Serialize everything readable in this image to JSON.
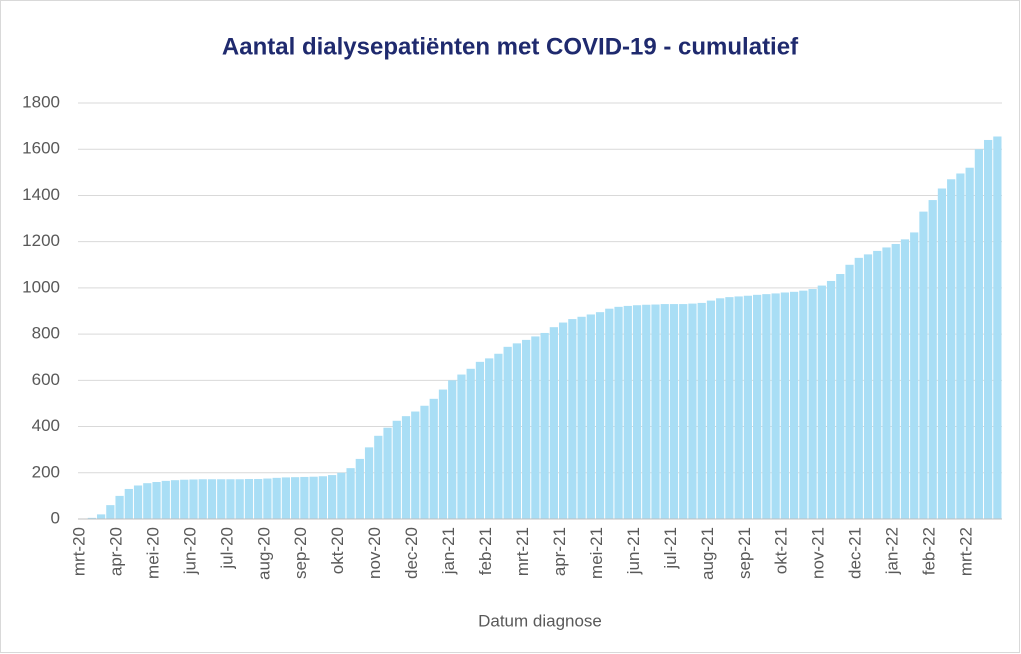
{
  "chart_data": {
    "type": "bar",
    "title": "Aantal dialysepatiënten met COVID-19 - cumulatief",
    "x_label": "Datum diagnose",
    "categories": [
      "mrt-20",
      null,
      null,
      null,
      "apr-20",
      null,
      null,
      null,
      "mei-20",
      null,
      null,
      null,
      "jun-20",
      null,
      null,
      null,
      "jul-20",
      null,
      null,
      null,
      "aug-20",
      null,
      null,
      null,
      "sep-20",
      null,
      null,
      null,
      "okt-20",
      null,
      null,
      null,
      "nov-20",
      null,
      null,
      null,
      "dec-20",
      null,
      null,
      null,
      "jan-21",
      null,
      null,
      null,
      "feb-21",
      null,
      null,
      null,
      "mrt-21",
      null,
      null,
      null,
      "apr-21",
      null,
      null,
      null,
      "mei-21",
      null,
      null,
      null,
      "jun-21",
      null,
      null,
      null,
      "jul-21",
      null,
      null,
      null,
      "aug-21",
      null,
      null,
      null,
      "sep-21",
      null,
      null,
      null,
      "okt-21",
      null,
      null,
      null,
      "nov-21",
      null,
      null,
      null,
      "dec-21",
      null,
      null,
      null,
      "jan-22",
      null,
      null,
      null,
      "feb-22",
      null,
      null,
      null,
      "mrt-22",
      null,
      null,
      null
    ],
    "values": [
      2,
      5,
      20,
      60,
      100,
      130,
      145,
      155,
      160,
      165,
      168,
      170,
      171,
      172,
      172,
      172,
      172,
      172,
      173,
      173,
      175,
      178,
      180,
      181,
      182,
      183,
      185,
      190,
      200,
      220,
      260,
      310,
      360,
      395,
      425,
      445,
      465,
      490,
      520,
      560,
      600,
      625,
      650,
      680,
      695,
      715,
      745,
      760,
      775,
      790,
      805,
      830,
      850,
      865,
      875,
      885,
      895,
      910,
      918,
      922,
      925,
      927,
      928,
      930,
      930,
      930,
      932,
      935,
      945,
      955,
      960,
      963,
      966,
      970,
      973,
      976,
      980,
      983,
      988,
      995,
      1010,
      1030,
      1060,
      1100,
      1130,
      1145,
      1160,
      1175,
      1190,
      1210,
      1240,
      1330,
      1380,
      1430,
      1470,
      1495,
      1520,
      1600,
      1640,
      1655
    ],
    "color": "#a9def5",
    "ylim": [
      0,
      1800
    ],
    "yticks": [
      0,
      200,
      400,
      600,
      800,
      1000,
      1200,
      1400,
      1600,
      1800
    ],
    "grid": true
  }
}
